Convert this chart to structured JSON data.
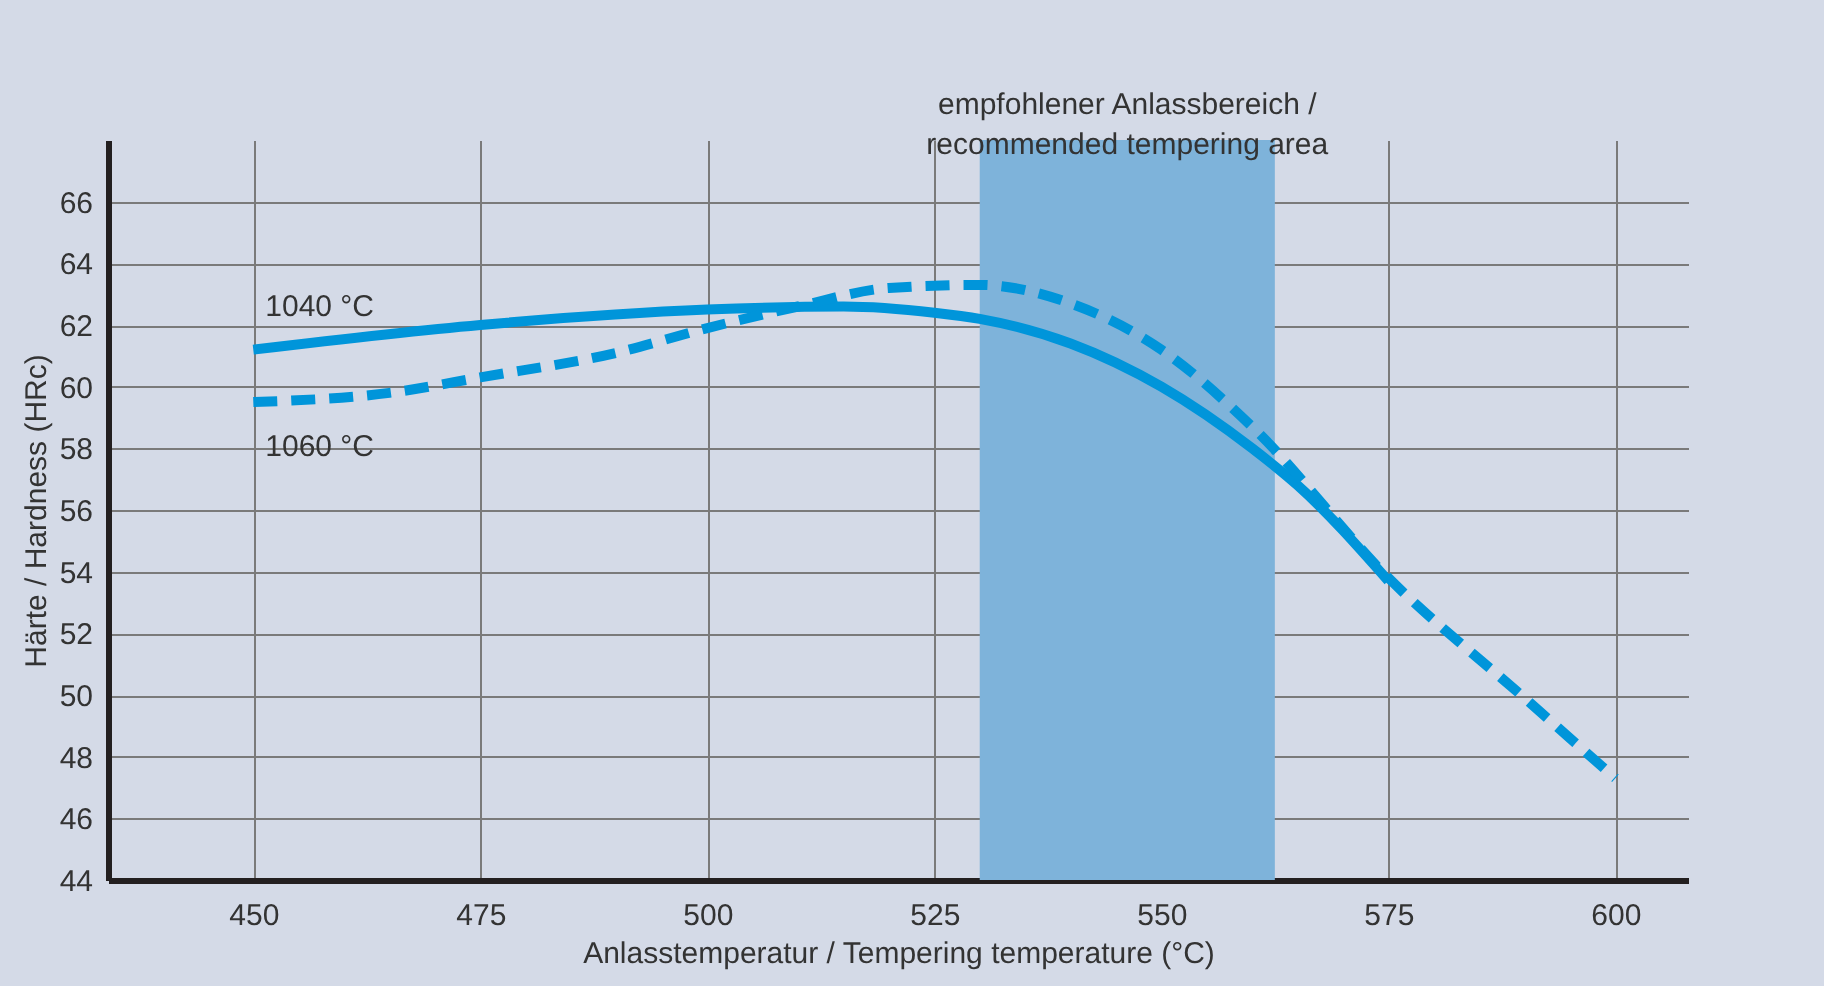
{
  "chart_data": {
    "type": "line",
    "xlabel": "Anlasstemperatur / Tempering temperature (°C)",
    "ylabel": "Härte / Hardness (HRc)",
    "xlim": [
      434,
      608
    ],
    "xticks": [
      450,
      475,
      500,
      525,
      550,
      575,
      600
    ],
    "ylim": [
      44,
      68
    ],
    "yticks": [
      44,
      46,
      48,
      50,
      52,
      54,
      56,
      58,
      60,
      62,
      64,
      66
    ],
    "grid": true,
    "bands": [
      {
        "axis": "x",
        "from": 530,
        "to": 562.5,
        "label": "empfohlener Anlassbereich / recommended tempering area",
        "color": "#7eb3da"
      }
    ],
    "series": [
      {
        "name": "1040 °C",
        "color": "#0095da",
        "line_style": "solid",
        "x": [
          450,
          475,
          500,
          515,
          525,
          530,
          540,
          550,
          560,
          565,
          575
        ],
        "values": [
          61.2,
          62.0,
          62.5,
          62.6,
          62.4,
          62.2,
          61.4,
          60.0,
          58.0,
          56.8,
          53.7
        ]
      },
      {
        "name": "1060 °C",
        "color": "#0095da",
        "line_style": "dashed",
        "x": [
          450,
          465,
          475,
          490,
          500,
          510,
          520,
          530,
          540,
          550,
          560,
          575,
          590,
          600
        ],
        "values": [
          59.5,
          59.8,
          60.3,
          61.1,
          61.9,
          62.6,
          63.2,
          63.3,
          62.7,
          61.2,
          58.7,
          53.8,
          49.9,
          47.3
        ]
      }
    ]
  }
}
